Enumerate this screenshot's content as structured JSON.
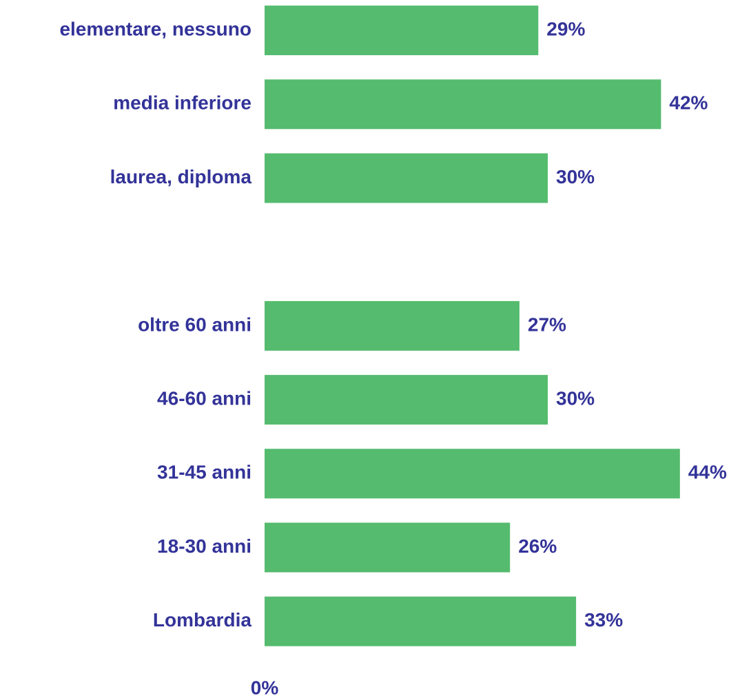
{
  "chart_data": {
    "type": "barh",
    "categories": [
      "elementare, nessuno",
      "media inferiore",
      "laurea, diploma",
      null,
      "oltre 60 anni",
      "46-60 anni",
      "31-45 anni",
      "18-30 anni",
      "Lombardia"
    ],
    "values": [
      29,
      42,
      30,
      null,
      27,
      30,
      44,
      26,
      33
    ],
    "value_labels": [
      "29%",
      "42%",
      "30%",
      null,
      "27%",
      "30%",
      "44%",
      "26%",
      "33%"
    ],
    "color": "#55bb6e",
    "text_color": "#333399",
    "xlim": [
      0,
      50
    ],
    "xticks": [
      {
        "value": 0,
        "label": "0%"
      }
    ],
    "grid": false
  }
}
